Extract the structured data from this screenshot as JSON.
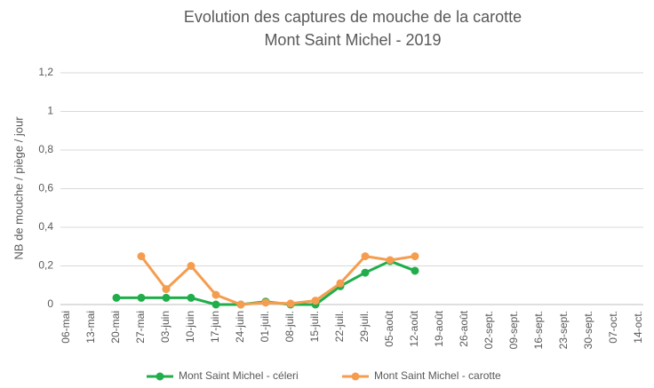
{
  "chart_data": {
    "type": "line",
    "title": "Evolution des captures de mouche de la carotte",
    "subtitle": "Mont Saint Michel - 2019",
    "y_label": "NB de mouche / piège / jour",
    "categories": [
      "06-mai",
      "13-mai",
      "20-mai",
      "27-mai",
      "03-juin",
      "10-juin",
      "17-juin",
      "24-juin",
      "01-juil.",
      "08-juil.",
      "15-juil.",
      "22-juil.",
      "29-juil.",
      "05-août",
      "12-août",
      "19-août",
      "26-août",
      "02-sept.",
      "09-sept.",
      "16-sept.",
      "23-sept.",
      "30-sept.",
      "07-oct.",
      "14-oct."
    ],
    "series": [
      {
        "name": "Mont Saint Michel - céleri",
        "color": "#1fae4b",
        "values": [
          null,
          null,
          0.035,
          0.035,
          0.035,
          0.035,
          0,
          0,
          0.015,
          0,
          0,
          0.095,
          0.165,
          0.225,
          0.175,
          null,
          null,
          null,
          null,
          null,
          null,
          null,
          null,
          null
        ]
      },
      {
        "name": "Mont Saint Michel - carotte",
        "color": "#f59d4f",
        "values": [
          null,
          null,
          null,
          0.25,
          0.08,
          0.2,
          0.05,
          0,
          0.01,
          0.005,
          0.02,
          0.11,
          0.25,
          0.23,
          0.25,
          null,
          null,
          null,
          null,
          null,
          null,
          null,
          null,
          null
        ]
      }
    ],
    "ylim": [
      0,
      1.2
    ],
    "yticks": [
      0,
      {
        "value": 0.2,
        "label": "0,2"
      },
      {
        "value": 0.4,
        "label": "0,4"
      },
      {
        "value": 0.6,
        "label": "0,6"
      },
      {
        "value": 0.8,
        "label": "0,8"
      },
      1,
      {
        "value": 1.2,
        "label": "1,2"
      }
    ],
    "grid": true,
    "legend": "bottom"
  }
}
